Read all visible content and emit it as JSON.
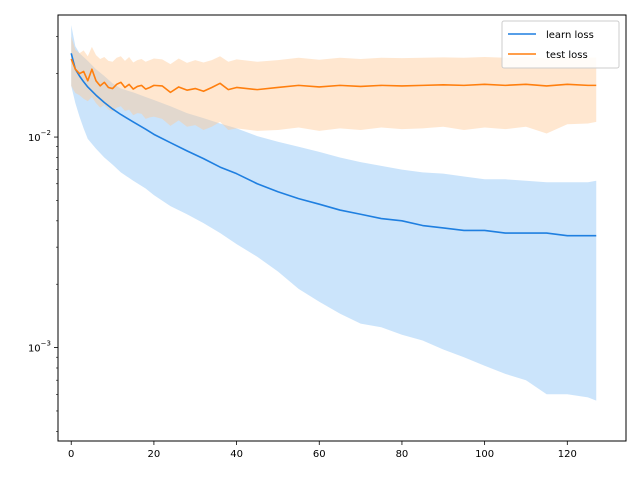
{
  "chart_data": {
    "type": "line",
    "title": "",
    "xlabel": "",
    "ylabel": "",
    "xlim": [
      -3.2,
      134.2
    ],
    "ylim": [
      0.00036,
      0.038
    ],
    "yscale": "log",
    "grid": false,
    "legend_position": "top-right",
    "x_ticks": [
      0,
      20,
      40,
      60,
      80,
      100,
      120
    ],
    "y_tick_labels": [
      "10^-3",
      "10^-2"
    ],
    "y_major_ticks": [
      0.001,
      0.01
    ],
    "y_minor_ticks": [
      0.0004,
      0.0005,
      0.0006,
      0.0007,
      0.0008,
      0.0009,
      0.002,
      0.003,
      0.004,
      0.005,
      0.006,
      0.007,
      0.008,
      0.009,
      0.02,
      0.03
    ],
    "series": [
      {
        "name": "learn loss",
        "color": "#1f7fe0",
        "band_color": "#8cc4f7",
        "x": [
          0,
          1,
          2,
          3,
          4,
          6,
          8,
          10,
          12,
          15,
          18,
          20,
          24,
          28,
          32,
          36,
          40,
          45,
          50,
          55,
          60,
          65,
          70,
          75,
          80,
          85,
          90,
          95,
          100,
          105,
          110,
          115,
          120,
          125,
          127
        ],
        "mean": [
          0.025,
          0.021,
          0.0195,
          0.0183,
          0.0173,
          0.0158,
          0.0146,
          0.0136,
          0.0128,
          0.0118,
          0.0109,
          0.0103,
          0.0094,
          0.0086,
          0.0079,
          0.0072,
          0.0067,
          0.006,
          0.0055,
          0.0051,
          0.0048,
          0.0045,
          0.0043,
          0.0041,
          0.004,
          0.0038,
          0.0037,
          0.0036,
          0.0036,
          0.0035,
          0.0035,
          0.0035,
          0.0034,
          0.0034,
          0.0034
        ],
        "upper": [
          0.034,
          0.027,
          0.025,
          0.024,
          0.023,
          0.021,
          0.0195,
          0.018,
          0.017,
          0.0163,
          0.0155,
          0.015,
          0.014,
          0.013,
          0.0123,
          0.0116,
          0.011,
          0.0101,
          0.0095,
          0.009,
          0.0085,
          0.008,
          0.0076,
          0.0073,
          0.007,
          0.0068,
          0.0067,
          0.0065,
          0.0063,
          0.0063,
          0.0062,
          0.0061,
          0.0061,
          0.0061,
          0.0062
        ],
        "lower": [
          0.0175,
          0.0145,
          0.0125,
          0.011,
          0.0098,
          0.0088,
          0.008,
          0.0074,
          0.0068,
          0.0062,
          0.0057,
          0.0053,
          0.0047,
          0.0043,
          0.0039,
          0.0035,
          0.0031,
          0.0027,
          0.0023,
          0.0019,
          0.00165,
          0.00145,
          0.0013,
          0.00125,
          0.00115,
          0.00108,
          0.00098,
          0.0009,
          0.00082,
          0.00075,
          0.0007,
          0.0006,
          0.0006,
          0.00058,
          0.00056
        ]
      },
      {
        "name": "test loss",
        "color": "#ff7f0e",
        "band_color": "#ffc996",
        "x": [
          0,
          1,
          2,
          3,
          4,
          5,
          6,
          7,
          8,
          9,
          10,
          11,
          12,
          13,
          14,
          15,
          16,
          17,
          18,
          19,
          20,
          22,
          24,
          26,
          28,
          30,
          32,
          34,
          36,
          38,
          40,
          45,
          50,
          55,
          60,
          65,
          70,
          75,
          80,
          85,
          90,
          95,
          100,
          105,
          110,
          115,
          120,
          125,
          127
        ],
        "mean": [
          0.0235,
          0.021,
          0.02,
          0.0205,
          0.0185,
          0.021,
          0.0185,
          0.0175,
          0.0182,
          0.0172,
          0.017,
          0.0178,
          0.0182,
          0.0172,
          0.0178,
          0.0169,
          0.0174,
          0.0176,
          0.0169,
          0.0172,
          0.0176,
          0.0175,
          0.0163,
          0.0173,
          0.0167,
          0.017,
          0.0165,
          0.0172,
          0.018,
          0.0168,
          0.0172,
          0.0168,
          0.0172,
          0.0176,
          0.0173,
          0.0176,
          0.0174,
          0.0176,
          0.0175,
          0.0176,
          0.0177,
          0.0176,
          0.0178,
          0.0176,
          0.0178,
          0.0175,
          0.0178,
          0.0176,
          0.0176
        ],
        "upper": [
          0.03,
          0.026,
          0.025,
          0.0258,
          0.0242,
          0.0268,
          0.0245,
          0.0235,
          0.024,
          0.023,
          0.0228,
          0.0238,
          0.0242,
          0.023,
          0.024,
          0.0226,
          0.0232,
          0.0235,
          0.0228,
          0.0232,
          0.0236,
          0.0234,
          0.0222,
          0.0236,
          0.0225,
          0.0232,
          0.0226,
          0.0232,
          0.0242,
          0.0228,
          0.0234,
          0.0228,
          0.0232,
          0.0238,
          0.0233,
          0.0238,
          0.0235,
          0.0238,
          0.0237,
          0.0238,
          0.0239,
          0.0238,
          0.024,
          0.0238,
          0.024,
          0.0236,
          0.024,
          0.0238,
          0.0239
        ],
        "lower": [
          0.0175,
          0.0162,
          0.0158,
          0.0152,
          0.0148,
          0.0155,
          0.0145,
          0.0138,
          0.0142,
          0.0135,
          0.0132,
          0.0138,
          0.014,
          0.0133,
          0.0135,
          0.0127,
          0.013,
          0.0129,
          0.0122,
          0.0124,
          0.0125,
          0.0122,
          0.0113,
          0.012,
          0.0112,
          0.0114,
          0.0108,
          0.0112,
          0.0118,
          0.0108,
          0.011,
          0.0107,
          0.0108,
          0.0111,
          0.0107,
          0.011,
          0.0108,
          0.0111,
          0.0109,
          0.011,
          0.0112,
          0.0108,
          0.0111,
          0.0109,
          0.0112,
          0.0104,
          0.0115,
          0.0116,
          0.0118
        ]
      }
    ]
  }
}
